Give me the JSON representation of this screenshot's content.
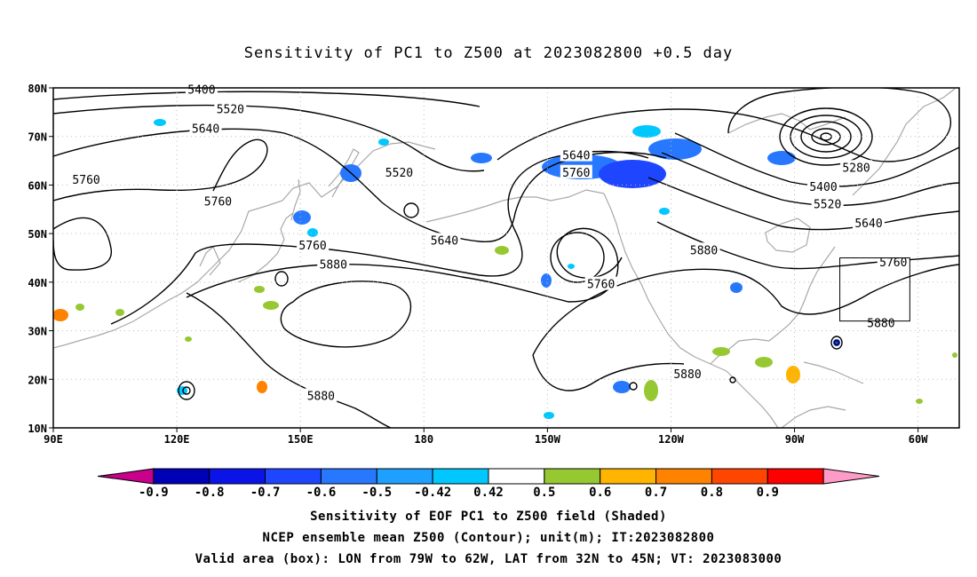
{
  "title": "Sensitivity of PC1 to Z500 at 2023082800 +0.5 day",
  "lat_labels": [
    "80N",
    "70N",
    "60N",
    "50N",
    "40N",
    "30N",
    "20N",
    "10N"
  ],
  "lon_labels": [
    "90E",
    "120E",
    "150E",
    "180",
    "150W",
    "120W",
    "90W",
    "60W"
  ],
  "contour_labels": [
    {
      "text": "5400",
      "lon": 126,
      "lat": 79.5
    },
    {
      "text": "5520",
      "lon": 133,
      "lat": 75.5
    },
    {
      "text": "5640",
      "lon": 127,
      "lat": 71.5
    },
    {
      "text": "5760",
      "lon": 98,
      "lat": 61
    },
    {
      "text": "5760",
      "lon": 130,
      "lat": 56.5
    },
    {
      "text": "5520",
      "lon": 174,
      "lat": 62.5
    },
    {
      "text": "5640",
      "lon": -143,
      "lat": 66
    },
    {
      "text": "5760",
      "lon": -143,
      "lat": 62.5
    },
    {
      "text": "5640",
      "lon": -175,
      "lat": 48.5
    },
    {
      "text": "5760",
      "lon": 153,
      "lat": 47.5
    },
    {
      "text": "5880",
      "lon": 158,
      "lat": 43.5
    },
    {
      "text": "5760",
      "lon": -137,
      "lat": 39.5
    },
    {
      "text": "5880",
      "lon": -112,
      "lat": 46.5
    },
    {
      "text": "5280",
      "lon": -75,
      "lat": 63.5
    },
    {
      "text": "5400",
      "lon": -83,
      "lat": 59.5
    },
    {
      "text": "5520",
      "lon": -82,
      "lat": 56
    },
    {
      "text": "5640",
      "lon": -72,
      "lat": 52
    },
    {
      "text": "5760",
      "lon": -66,
      "lat": 44
    },
    {
      "text": "5880",
      "lon": -69,
      "lat": 31.5
    },
    {
      "text": "5880",
      "lon": 155,
      "lat": 16.5
    },
    {
      "text": "5880",
      "lon": -116,
      "lat": 21
    }
  ],
  "colorbar": {
    "labels": [
      "-0.9",
      "-0.8",
      "-0.7",
      "-0.6",
      "-0.5",
      "-0.42",
      "0.42",
      "0.5",
      "0.6",
      "0.7",
      "0.8",
      "0.9"
    ],
    "colors": [
      "#c8008c",
      "#0000b4",
      "#0a14e6",
      "#1e46ff",
      "#2878ff",
      "#1ea0ff",
      "#00c8ff",
      "#ffffff",
      "#96c832",
      "#ffb400",
      "#ff8200",
      "#ff4600",
      "#ff0000",
      "#ff9bc8"
    ]
  },
  "valid_box": {
    "lon_min": -79,
    "lon_max": -62,
    "lat_min": 32,
    "lat_max": 45
  },
  "caption": {
    "line1": "Sensitivity of EOF PC1 to Z500 field (Shaded)",
    "line2": "NCEP ensemble mean Z500 (Contour); unit(m); IT:2023082800",
    "line3": "Valid area (box): LON from 79W to 62W, LAT from 32N to 45N; VT: 2023083000"
  }
}
